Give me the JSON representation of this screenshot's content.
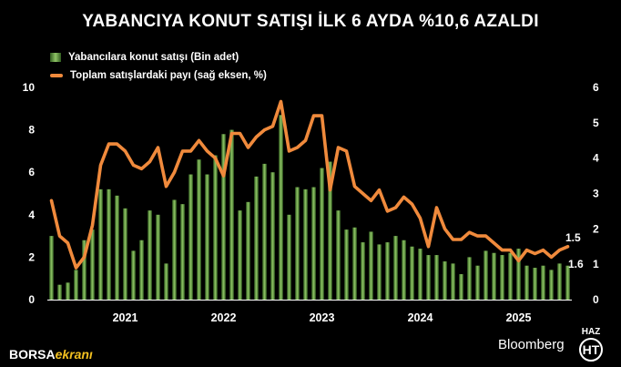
{
  "chart_data": {
    "type": "bar+line",
    "title": "YABANCIYA KONUT SATIŞI İLK 6 AYDA %10,6 AZALDI",
    "legend": [
      {
        "label": "Yabancılara konut satışı (Bin adet)",
        "type": "bar",
        "color": "#6aa84f"
      },
      {
        "label": "Toplam satışlardaki payı (sağ eksen, %)",
        "type": "line",
        "color": "#f08a3c"
      }
    ],
    "x_labels": [
      "2021",
      "2022",
      "2023",
      "2024",
      "2025"
    ],
    "x_label_index": [
      9,
      21,
      33,
      45,
      57
    ],
    "x_start": "2020-05",
    "x_end": "2025-06",
    "y_left": {
      "min": 0,
      "max": 10,
      "ticks": [
        "0",
        "2",
        "4",
        "6",
        "8",
        "10"
      ]
    },
    "y_right": {
      "min": 0,
      "max": 6,
      "ticks": [
        "0",
        "1",
        "2",
        "3",
        "4",
        "5",
        "6"
      ]
    },
    "series": [
      {
        "name": "Yabancılara konut satışı (Bin adet)",
        "axis": "left",
        "values": [
          3.0,
          0.7,
          0.8,
          1.4,
          2.8,
          3.3,
          5.2,
          5.2,
          4.9,
          4.3,
          2.3,
          2.8,
          4.2,
          4.0,
          1.7,
          4.7,
          4.5,
          5.9,
          6.6,
          5.9,
          6.8,
          7.8,
          8.0,
          4.2,
          4.6,
          5.8,
          6.4,
          6.0,
          8.7,
          4.0,
          5.3,
          5.2,
          5.3,
          6.2,
          6.5,
          4.2,
          3.3,
          3.4,
          2.7,
          3.2,
          2.6,
          2.7,
          3.0,
          2.8,
          2.5,
          2.4,
          2.1,
          2.1,
          1.8,
          1.7,
          1.2,
          2.0,
          1.6,
          2.3,
          2.2,
          2.1,
          2.2,
          2.4,
          1.6,
          1.5,
          1.6,
          1.4,
          1.7,
          1.6
        ]
      },
      {
        "name": "Toplam satışlardaki payı (sağ eksen, %)",
        "axis": "right",
        "values": [
          2.8,
          1.8,
          1.6,
          0.9,
          1.2,
          2.1,
          3.8,
          4.4,
          4.4,
          4.2,
          3.8,
          3.7,
          3.9,
          4.3,
          3.2,
          3.6,
          4.2,
          4.2,
          4.5,
          4.2,
          4.0,
          3.5,
          4.7,
          4.7,
          4.3,
          4.6,
          4.8,
          4.9,
          5.6,
          4.2,
          4.3,
          4.5,
          5.2,
          5.2,
          3.1,
          4.3,
          4.2,
          3.2,
          3.0,
          2.8,
          3.1,
          2.5,
          2.6,
          2.9,
          2.7,
          2.3,
          1.5,
          2.6,
          2.0,
          1.7,
          1.7,
          1.9,
          1.8,
          1.8,
          1.6,
          1.4,
          1.4,
          1.1,
          1.4,
          1.3,
          1.4,
          1.2,
          1.4,
          1.5
        ]
      }
    ],
    "annotations": [
      "1.5",
      "1.6"
    ]
  },
  "footer": {
    "brand_part1": "BORSA",
    "brand_part2": "ekranı",
    "source": "Bloomberg",
    "logo_label": "HAZ",
    "logo_mark": "HT"
  }
}
